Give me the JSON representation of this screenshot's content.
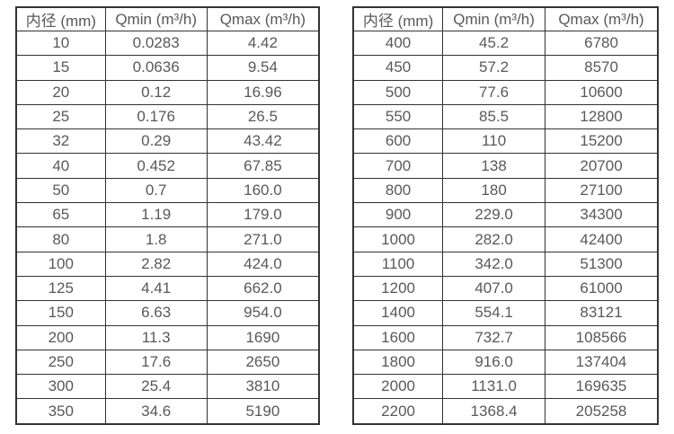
{
  "page": {
    "background": "#ffffff",
    "border_color": "#333333",
    "text_color": "#595959"
  },
  "tables": [
    {
      "name": "flow-table-small-diameters",
      "headers": [
        "内径 (mm)",
        "Qmin (m³/h)",
        "Qmax (m³/h)"
      ],
      "rows": [
        [
          "10",
          "0.0283",
          "4.42"
        ],
        [
          "15",
          "0.0636",
          "9.54"
        ],
        [
          "20",
          "0.12",
          "16.96"
        ],
        [
          "25",
          "0.176",
          "26.5"
        ],
        [
          "32",
          "0.29",
          "43.42"
        ],
        [
          "40",
          "0.452",
          "67.85"
        ],
        [
          "50",
          "0.7",
          "160.0"
        ],
        [
          "65",
          "1.19",
          "179.0"
        ],
        [
          "80",
          "1.8",
          "271.0"
        ],
        [
          "100",
          "2.82",
          "424.0"
        ],
        [
          "125",
          "4.41",
          "662.0"
        ],
        [
          "150",
          "6.63",
          "954.0"
        ],
        [
          "200",
          "11.3",
          "1690"
        ],
        [
          "250",
          "17.6",
          "2650"
        ],
        [
          "300",
          "25.4",
          "3810"
        ],
        [
          "350",
          "34.6",
          "5190"
        ]
      ]
    },
    {
      "name": "flow-table-large-diameters",
      "headers": [
        "内径 (mm)",
        "Qmin (m³/h)",
        "Qmax (m³/h)"
      ],
      "rows": [
        [
          "400",
          "45.2",
          "6780"
        ],
        [
          "450",
          "57.2",
          "8570"
        ],
        [
          "500",
          "77.6",
          "10600"
        ],
        [
          "550",
          "85.5",
          "12800"
        ],
        [
          "600",
          "110",
          "15200"
        ],
        [
          "700",
          "138",
          "20700"
        ],
        [
          "800",
          "180",
          "27100"
        ],
        [
          "900",
          "229.0",
          "34300"
        ],
        [
          "1000",
          "282.0",
          "42400"
        ],
        [
          "1100",
          "342.0",
          "51300"
        ],
        [
          "1200",
          "407.0",
          "61000"
        ],
        [
          "1400",
          "554.1",
          "83121"
        ],
        [
          "1600",
          "732.7",
          "108566"
        ],
        [
          "1800",
          "916.0",
          "137404"
        ],
        [
          "2000",
          "1131.0",
          "169635"
        ],
        [
          "2200",
          "1368.4",
          "205258"
        ]
      ]
    }
  ]
}
